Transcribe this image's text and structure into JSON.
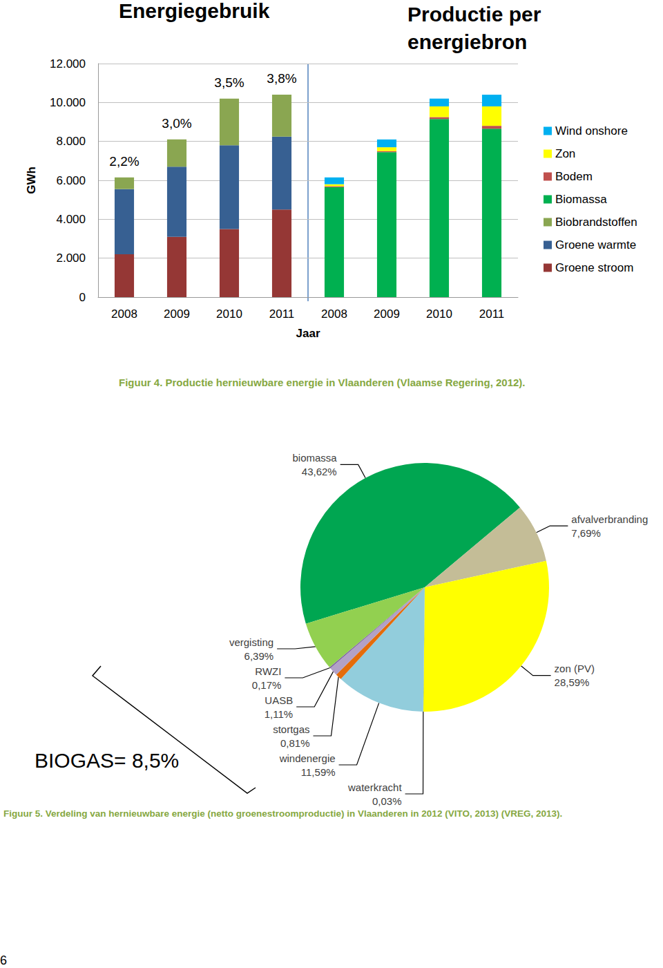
{
  "page": {
    "number": "6"
  },
  "chart_data": [
    {
      "type": "bar",
      "stacked": true,
      "caption": "Figuur 4. Productie hernieuwbare energie in Vlaanderen (Vlaamse Regering, 2012).",
      "group_titles": [
        "Energiegebruik",
        "Productie per energiebron"
      ],
      "x_label": "Jaar",
      "y_label": "GWh",
      "categories": [
        "2008",
        "2009",
        "2010",
        "2011",
        "2008",
        "2009",
        "2010",
        "2011"
      ],
      "annotations": [
        "2,2%",
        "3,0%",
        "3,5%",
        "3,8%",
        null,
        null,
        null,
        null
      ],
      "series": [
        {
          "name": "Groene stroom",
          "color": "#953735",
          "values": [
            2200,
            3100,
            3500,
            4500,
            null,
            null,
            null,
            null
          ]
        },
        {
          "name": "Groene warmte",
          "color": "#376092",
          "values": [
            3350,
            3600,
            4300,
            3750,
            null,
            null,
            null,
            null
          ]
        },
        {
          "name": "Biobrandstoffen",
          "color": "#8aa651",
          "values": [
            600,
            1400,
            2400,
            2150,
            null,
            null,
            null,
            null
          ]
        },
        {
          "name": "Biomassa",
          "color": "#00b050",
          "values": [
            null,
            null,
            null,
            null,
            5650,
            7450,
            9150,
            8650
          ]
        },
        {
          "name": "Bodem",
          "color": "#c0504d",
          "values": [
            null,
            null,
            null,
            null,
            50,
            50,
            100,
            150
          ]
        },
        {
          "name": "Zon",
          "color": "#ffff00",
          "values": [
            null,
            null,
            null,
            null,
            100,
            200,
            550,
            1000
          ]
        },
        {
          "name": "Wind onshore",
          "color": "#00b0f0",
          "values": [
            null,
            null,
            null,
            null,
            350,
            400,
            400,
            600
          ]
        }
      ],
      "ylim": [
        0,
        12000
      ],
      "yticks": [
        0,
        {
          "value": 2000,
          "label": "2.000"
        },
        {
          "value": 4000,
          "label": "4.000"
        },
        {
          "value": 6000,
          "label": "6.000"
        },
        {
          "value": 8000,
          "label": "8.000"
        },
        {
          "value": 10000,
          "label": "10.000"
        },
        {
          "value": 12000,
          "label": "12.000"
        }
      ],
      "grid": true,
      "legend": "right"
    },
    {
      "type": "pie",
      "caption": "Figuur 5. Verdeling van hernieuwbare energie (netto groenestroomproductie) in Vlaanderen in 2012 (VITO, 2013) (VREG, 2013).",
      "categories": [
        "biomassa",
        "afvalverbranding",
        "zon (PV)",
        "waterkracht",
        "windenergie",
        "stortgas",
        "UASB",
        "RWZI",
        "vergisting"
      ],
      "values": [
        43.62,
        7.69,
        28.59,
        0.03,
        11.59,
        0.81,
        1.11,
        0.17,
        6.39
      ],
      "value_labels": [
        "43,62%",
        "7,69%",
        "28,59%",
        "0,03%",
        "11,59%",
        "0,81%",
        "1,11%",
        "0,17%",
        "6,39%"
      ],
      "colors": [
        "#00a651",
        "#c4bd97",
        "#ffff00",
        "#31859c",
        "#92cddc",
        "#e46c0a",
        "#b2a1c7",
        "#8064a2",
        "#92d050"
      ],
      "data_labels": true,
      "annotations": [
        "BIOGAS= 8,5%"
      ]
    }
  ]
}
